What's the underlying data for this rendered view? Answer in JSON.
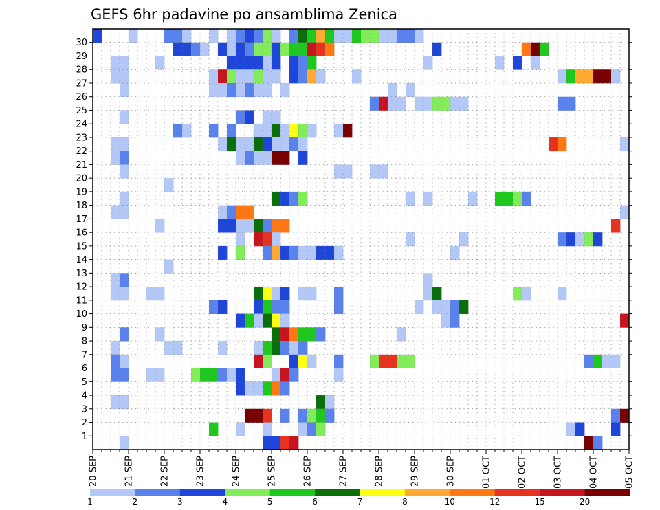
{
  "chart_data": {
    "type": "heatmap",
    "title": "GEFS 6hr padavine po ansamblima Zenica",
    "x_labels": [
      "20 SEP",
      "21 SEP",
      "22 SEP",
      "23 SEP",
      "24 SEP",
      "25 SEP",
      "26 SEP",
      "27 SEP",
      "28 SEP",
      "29 SEP",
      "30 SEP",
      "01 OCT",
      "02 OCT",
      "03 OCT",
      "04 OCT",
      "05 OCT"
    ],
    "x_steps_total": 60,
    "steps_per_day": 4,
    "y_labels": [
      1,
      2,
      3,
      4,
      5,
      6,
      7,
      8,
      9,
      10,
      11,
      12,
      13,
      14,
      15,
      16,
      17,
      18,
      19,
      20,
      21,
      22,
      23,
      24,
      25,
      26,
      27,
      28,
      29,
      30
    ],
    "grid": "dotted",
    "colorbar": {
      "position": "bottom",
      "labels": [
        "1",
        "2",
        "3",
        "4",
        "5",
        "6",
        "7",
        "8",
        "10",
        "12",
        "15",
        "20"
      ],
      "colors": [
        "#b4c8f8",
        "#5a82ec",
        "#1e46d8",
        "#82ec5a",
        "#1ec81e",
        "#0a6e0a",
        "#ffff14",
        "#ffaa32",
        "#ff7814",
        "#e6321e",
        "#c8141e",
        "#780000"
      ]
    },
    "cells": [
      [
        30,
        0,
        3
      ],
      [
        30,
        4,
        1
      ],
      [
        30,
        8,
        2
      ],
      [
        30,
        9,
        2
      ],
      [
        30,
        10,
        1
      ],
      [
        30,
        13,
        1
      ],
      [
        30,
        15,
        1
      ],
      [
        30,
        16,
        2
      ],
      [
        30,
        17,
        3
      ],
      [
        30,
        18,
        2
      ],
      [
        30,
        19,
        4
      ],
      [
        30,
        20,
        1
      ],
      [
        30,
        22,
        2
      ],
      [
        30,
        23,
        6
      ],
      [
        30,
        24,
        5
      ],
      [
        30,
        25,
        8
      ],
      [
        30,
        26,
        5
      ],
      [
        30,
        27,
        1
      ],
      [
        30,
        28,
        1
      ],
      [
        30,
        29,
        5
      ],
      [
        30,
        30,
        4
      ],
      [
        30,
        31,
        4
      ],
      [
        30,
        32,
        1
      ],
      [
        30,
        33,
        1
      ],
      [
        30,
        34,
        2
      ],
      [
        30,
        35,
        2
      ],
      [
        30,
        36,
        1
      ],
      [
        29,
        9,
        3
      ],
      [
        29,
        10,
        3
      ],
      [
        29,
        11,
        2
      ],
      [
        29,
        12,
        1
      ],
      [
        29,
        14,
        3
      ],
      [
        29,
        15,
        1
      ],
      [
        29,
        16,
        3
      ],
      [
        29,
        17,
        2
      ],
      [
        29,
        18,
        4
      ],
      [
        29,
        19,
        4
      ],
      [
        29,
        20,
        3
      ],
      [
        29,
        21,
        4
      ],
      [
        29,
        22,
        5
      ],
      [
        29,
        23,
        5
      ],
      [
        29,
        24,
        11
      ],
      [
        29,
        25,
        10
      ],
      [
        29,
        26,
        9
      ],
      [
        29,
        38,
        3
      ],
      [
        29,
        48,
        9
      ],
      [
        29,
        49,
        12
      ],
      [
        29,
        50,
        5
      ],
      [
        28,
        2,
        1
      ],
      [
        28,
        3,
        1
      ],
      [
        28,
        7,
        1
      ],
      [
        28,
        15,
        3
      ],
      [
        28,
        16,
        3
      ],
      [
        28,
        17,
        3
      ],
      [
        28,
        18,
        3
      ],
      [
        28,
        19,
        1
      ],
      [
        28,
        20,
        3
      ],
      [
        28,
        22,
        3
      ],
      [
        28,
        23,
        2
      ],
      [
        28,
        24,
        5
      ],
      [
        28,
        37,
        1
      ],
      [
        28,
        45,
        1
      ],
      [
        28,
        47,
        3
      ],
      [
        28,
        49,
        1
      ],
      [
        27,
        2,
        1
      ],
      [
        27,
        3,
        1
      ],
      [
        27,
        13,
        1
      ],
      [
        27,
        14,
        11
      ],
      [
        27,
        15,
        4
      ],
      [
        27,
        16,
        1
      ],
      [
        27,
        17,
        1
      ],
      [
        27,
        18,
        4
      ],
      [
        27,
        19,
        1
      ],
      [
        27,
        20,
        1
      ],
      [
        27,
        22,
        3
      ],
      [
        27,
        23,
        2
      ],
      [
        27,
        24,
        8
      ],
      [
        27,
        25,
        1
      ],
      [
        27,
        29,
        1
      ],
      [
        27,
        52,
        1
      ],
      [
        27,
        53,
        5
      ],
      [
        27,
        54,
        8
      ],
      [
        27,
        55,
        8
      ],
      [
        27,
        56,
        12
      ],
      [
        27,
        57,
        12
      ],
      [
        27,
        58,
        1
      ],
      [
        26,
        3,
        1
      ],
      [
        26,
        13,
        1
      ],
      [
        26,
        14,
        1
      ],
      [
        26,
        15,
        2
      ],
      [
        26,
        16,
        1
      ],
      [
        26,
        17,
        2
      ],
      [
        26,
        18,
        1
      ],
      [
        26,
        19,
        1
      ],
      [
        26,
        21,
        1
      ],
      [
        26,
        33,
        1
      ],
      [
        26,
        35,
        1
      ],
      [
        25,
        31,
        2
      ],
      [
        25,
        32,
        11
      ],
      [
        25,
        33,
        1
      ],
      [
        25,
        34,
        1
      ],
      [
        25,
        36,
        1
      ],
      [
        25,
        37,
        1
      ],
      [
        25,
        38,
        4
      ],
      [
        25,
        39,
        4
      ],
      [
        25,
        40,
        1
      ],
      [
        25,
        41,
        1
      ],
      [
        25,
        52,
        2
      ],
      [
        25,
        53,
        2
      ],
      [
        24,
        3,
        1
      ],
      [
        24,
        16,
        2
      ],
      [
        24,
        17,
        3
      ],
      [
        24,
        19,
        1
      ],
      [
        24,
        20,
        1
      ],
      [
        23,
        9,
        2
      ],
      [
        23,
        10,
        1
      ],
      [
        23,
        13,
        2
      ],
      [
        23,
        15,
        2
      ],
      [
        23,
        18,
        1
      ],
      [
        23,
        19,
        1
      ],
      [
        23,
        20,
        6
      ],
      [
        23,
        21,
        1
      ],
      [
        23,
        22,
        7
      ],
      [
        23,
        23,
        4
      ],
      [
        23,
        24,
        1
      ],
      [
        23,
        27,
        1
      ],
      [
        23,
        28,
        12
      ],
      [
        22,
        2,
        1
      ],
      [
        22,
        3,
        1
      ],
      [
        22,
        14,
        1
      ],
      [
        22,
        15,
        6
      ],
      [
        22,
        16,
        1
      ],
      [
        22,
        17,
        1
      ],
      [
        22,
        18,
        6
      ],
      [
        22,
        19,
        3
      ],
      [
        22,
        20,
        1
      ],
      [
        22,
        21,
        1
      ],
      [
        22,
        22,
        2
      ],
      [
        22,
        23,
        1
      ],
      [
        22,
        51,
        10
      ],
      [
        22,
        52,
        9
      ],
      [
        22,
        59,
        1
      ],
      [
        21,
        2,
        1
      ],
      [
        21,
        3,
        2
      ],
      [
        21,
        16,
        1
      ],
      [
        21,
        17,
        2
      ],
      [
        21,
        18,
        1
      ],
      [
        21,
        19,
        1
      ],
      [
        21,
        20,
        12
      ],
      [
        21,
        21,
        12
      ],
      [
        21,
        23,
        3
      ],
      [
        20,
        3,
        1
      ],
      [
        20,
        27,
        1
      ],
      [
        20,
        28,
        1
      ],
      [
        20,
        31,
        1
      ],
      [
        20,
        32,
        1
      ],
      [
        19,
        8,
        1
      ],
      [
        18,
        3,
        1
      ],
      [
        18,
        20,
        6
      ],
      [
        18,
        21,
        3
      ],
      [
        18,
        22,
        2
      ],
      [
        18,
        23,
        4
      ],
      [
        18,
        35,
        1
      ],
      [
        18,
        37,
        1
      ],
      [
        18,
        42,
        1
      ],
      [
        18,
        45,
        5
      ],
      [
        18,
        46,
        5
      ],
      [
        18,
        47,
        4
      ],
      [
        18,
        48,
        2
      ],
      [
        17,
        2,
        1
      ],
      [
        17,
        3,
        1
      ],
      [
        17,
        14,
        1
      ],
      [
        17,
        15,
        2
      ],
      [
        17,
        16,
        9
      ],
      [
        17,
        17,
        9
      ],
      [
        17,
        59,
        1
      ],
      [
        16,
        7,
        1
      ],
      [
        16,
        14,
        3
      ],
      [
        16,
        15,
        3
      ],
      [
        16,
        16,
        1
      ],
      [
        16,
        17,
        1
      ],
      [
        16,
        18,
        6
      ],
      [
        16,
        19,
        2
      ],
      [
        16,
        20,
        9
      ],
      [
        16,
        21,
        9
      ],
      [
        16,
        58,
        10
      ],
      [
        15,
        16,
        1
      ],
      [
        15,
        18,
        11
      ],
      [
        15,
        19,
        10
      ],
      [
        15,
        20,
        1
      ],
      [
        15,
        35,
        1
      ],
      [
        15,
        41,
        1
      ],
      [
        15,
        52,
        2
      ],
      [
        15,
        53,
        3
      ],
      [
        15,
        54,
        1
      ],
      [
        15,
        55,
        4
      ],
      [
        15,
        56,
        3
      ],
      [
        14,
        14,
        3
      ],
      [
        14,
        16,
        4
      ],
      [
        14,
        19,
        2
      ],
      [
        14,
        20,
        8
      ],
      [
        14,
        21,
        3
      ],
      [
        14,
        22,
        2
      ],
      [
        14,
        23,
        1
      ],
      [
        14,
        24,
        1
      ],
      [
        14,
        25,
        3
      ],
      [
        14,
        26,
        3
      ],
      [
        14,
        27,
        1
      ],
      [
        14,
        40,
        1
      ],
      [
        13,
        8,
        1
      ],
      [
        12,
        2,
        1
      ],
      [
        12,
        3,
        2
      ],
      [
        12,
        37,
        1
      ],
      [
        11,
        2,
        1
      ],
      [
        11,
        3,
        1
      ],
      [
        11,
        6,
        1
      ],
      [
        11,
        7,
        1
      ],
      [
        11,
        18,
        6
      ],
      [
        11,
        19,
        7
      ],
      [
        11,
        20,
        1
      ],
      [
        11,
        21,
        3
      ],
      [
        11,
        23,
        1
      ],
      [
        11,
        24,
        1
      ],
      [
        11,
        27,
        2
      ],
      [
        11,
        37,
        1
      ],
      [
        11,
        38,
        6
      ],
      [
        11,
        47,
        4
      ],
      [
        11,
        48,
        1
      ],
      [
        11,
        52,
        1
      ],
      [
        10,
        13,
        2
      ],
      [
        10,
        14,
        3
      ],
      [
        10,
        18,
        3
      ],
      [
        10,
        19,
        5
      ],
      [
        10,
        20,
        2
      ],
      [
        10,
        21,
        2
      ],
      [
        10,
        27,
        2
      ],
      [
        10,
        36,
        1
      ],
      [
        10,
        38,
        1
      ],
      [
        10,
        39,
        1
      ],
      [
        10,
        40,
        2
      ],
      [
        10,
        41,
        6
      ],
      [
        9,
        16,
        3
      ],
      [
        9,
        17,
        5
      ],
      [
        9,
        18,
        1
      ],
      [
        9,
        19,
        6
      ],
      [
        9,
        20,
        7
      ],
      [
        9,
        21,
        1
      ],
      [
        9,
        39,
        1
      ],
      [
        9,
        40,
        2
      ],
      [
        9,
        59,
        11
      ],
      [
        8,
        3,
        2
      ],
      [
        8,
        7,
        1
      ],
      [
        8,
        20,
        6
      ],
      [
        8,
        21,
        11
      ],
      [
        8,
        22,
        9
      ],
      [
        8,
        23,
        5
      ],
      [
        8,
        24,
        5
      ],
      [
        8,
        25,
        2
      ],
      [
        8,
        34,
        1
      ],
      [
        7,
        2,
        1
      ],
      [
        7,
        8,
        1
      ],
      [
        7,
        9,
        1
      ],
      [
        7,
        14,
        1
      ],
      [
        7,
        18,
        1
      ],
      [
        7,
        19,
        5
      ],
      [
        7,
        20,
        6
      ],
      [
        7,
        21,
        2
      ],
      [
        7,
        22,
        1
      ],
      [
        7,
        23,
        2
      ],
      [
        6,
        2,
        2
      ],
      [
        6,
        3,
        1
      ],
      [
        6,
        18,
        11
      ],
      [
        6,
        19,
        4
      ],
      [
        6,
        22,
        3
      ],
      [
        6,
        23,
        7
      ],
      [
        6,
        24,
        1
      ],
      [
        6,
        27,
        2
      ],
      [
        6,
        31,
        4
      ],
      [
        6,
        32,
        10
      ],
      [
        6,
        33,
        10
      ],
      [
        6,
        34,
        4
      ],
      [
        6,
        35,
        4
      ],
      [
        6,
        55,
        2
      ],
      [
        6,
        56,
        5
      ],
      [
        6,
        57,
        1
      ],
      [
        6,
        58,
        1
      ],
      [
        5,
        2,
        2
      ],
      [
        5,
        3,
        2
      ],
      [
        5,
        6,
        1
      ],
      [
        5,
        7,
        1
      ],
      [
        5,
        11,
        4
      ],
      [
        5,
        12,
        5
      ],
      [
        5,
        13,
        5
      ],
      [
        5,
        14,
        2
      ],
      [
        5,
        15,
        1
      ],
      [
        5,
        16,
        3
      ],
      [
        5,
        20,
        1
      ],
      [
        5,
        21,
        11
      ],
      [
        5,
        22,
        2
      ],
      [
        5,
        27,
        1
      ],
      [
        4,
        16,
        3
      ],
      [
        4,
        17,
        1
      ],
      [
        4,
        18,
        1
      ],
      [
        4,
        19,
        5
      ],
      [
        4,
        20,
        9
      ],
      [
        4,
        21,
        2
      ],
      [
        3,
        2,
        1
      ],
      [
        3,
        3,
        1
      ],
      [
        3,
        25,
        6
      ],
      [
        3,
        26,
        1
      ],
      [
        2,
        17,
        12
      ],
      [
        2,
        18,
        12
      ],
      [
        2,
        19,
        10
      ],
      [
        2,
        21,
        2
      ],
      [
        2,
        23,
        2
      ],
      [
        2,
        24,
        4
      ],
      [
        2,
        25,
        5
      ],
      [
        2,
        26,
        2
      ],
      [
        2,
        58,
        2
      ],
      [
        2,
        59,
        12
      ],
      [
        1,
        13,
        5
      ],
      [
        1,
        16,
        1
      ],
      [
        1,
        19,
        1
      ],
      [
        1,
        23,
        1
      ],
      [
        1,
        24,
        2
      ],
      [
        1,
        25,
        4
      ],
      [
        1,
        53,
        1
      ],
      [
        1,
        54,
        3
      ],
      [
        1,
        58,
        3
      ],
      [
        0,
        3,
        1
      ],
      [
        0,
        19,
        3
      ],
      [
        0,
        20,
        3
      ],
      [
        0,
        21,
        10
      ],
      [
        0,
        22,
        11
      ],
      [
        0,
        55,
        12
      ],
      [
        0,
        56,
        2
      ]
    ]
  }
}
